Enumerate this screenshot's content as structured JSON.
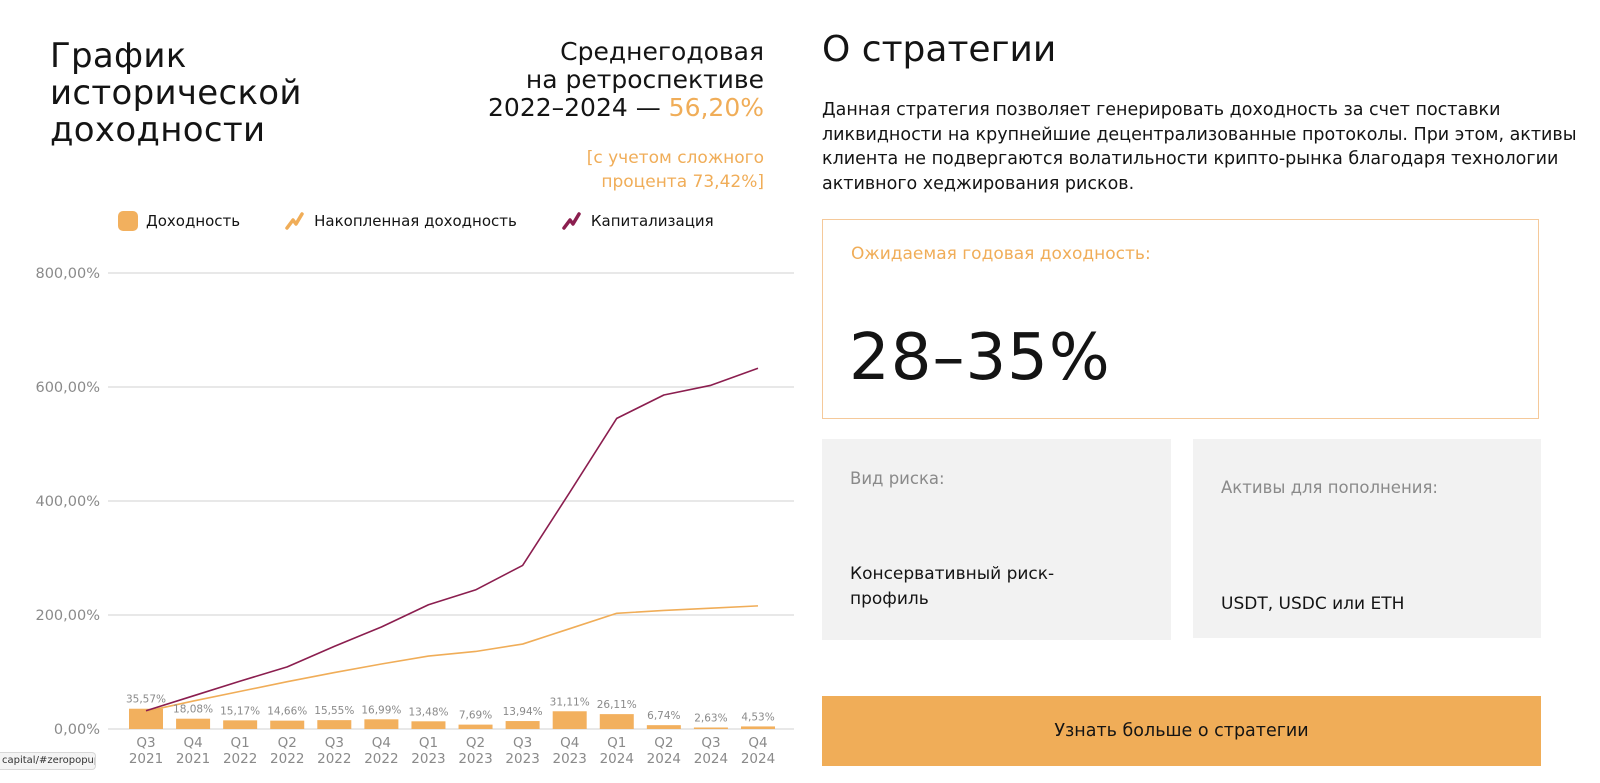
{
  "left_panel": {
    "title": "График исторической доходности",
    "summary": {
      "line1": "Среднегодовая",
      "line2": "на ретроспективе",
      "line3_prefix": "2022–2024 — ",
      "line3_value": "56,20%"
    },
    "compound_line1": "[с учетом сложного",
    "compound_line2": "процента 73,42%]"
  },
  "colors": {
    "accent": "#f0ad58",
    "bars": "#f2b05e",
    "cumulative_line": "#f0ad58",
    "capitalization_line": "#8b1e4f",
    "grid": "#d9d9d9",
    "axis_text": "#8a8a8a"
  },
  "legend": {
    "income": "Доходность",
    "cumulative": "Накопленная доходность",
    "capitalization": "Капитализация"
  },
  "chart_data": {
    "type": "bar",
    "y_tick_labels": [
      "0,00%",
      "200,00%",
      "400,00%",
      "600,00%",
      "800,00%"
    ],
    "y_ticks": [
      0,
      200,
      400,
      600,
      800
    ],
    "ylim": [
      0,
      800
    ],
    "grid": true,
    "legend_position": "top",
    "categories": [
      [
        "Q3",
        "2021"
      ],
      [
        "Q4",
        "2021"
      ],
      [
        "Q1",
        "2022"
      ],
      [
        "Q2",
        "2022"
      ],
      [
        "Q3",
        "2022"
      ],
      [
        "Q4",
        "2022"
      ],
      [
        "Q1",
        "2023"
      ],
      [
        "Q2",
        "2023"
      ],
      [
        "Q3",
        "2023"
      ],
      [
        "Q4",
        "2023"
      ],
      [
        "Q1",
        "2024"
      ],
      [
        "Q2",
        "2024"
      ],
      [
        "Q3",
        "2024"
      ],
      [
        "Q4",
        "2024"
      ]
    ],
    "series": [
      {
        "name": "Доходность",
        "type": "bar",
        "values": [
          35.57,
          18.08,
          15.17,
          14.66,
          15.55,
          16.99,
          13.48,
          7.69,
          13.94,
          31.11,
          26.11,
          6.74,
          2.63,
          4.53
        ],
        "labels": [
          "35,57%",
          "18,08%",
          "15,17%",
          "14,66%",
          "15,55%",
          "16,99%",
          "13,48%",
          "7,69%",
          "13,94%",
          "31,11%",
          "26,11%",
          "6,74%",
          "2,63%",
          "4,53%"
        ]
      },
      {
        "name": "Накопленная доходность",
        "type": "line",
        "values": [
          31,
          49,
          66,
          83,
          99,
          114,
          128,
          136,
          149,
          176,
          203,
          208,
          212,
          216
        ]
      },
      {
        "name": "Капитализация",
        "type": "line",
        "values": [
          32,
          58,
          84,
          109,
          145,
          179,
          218,
          244,
          287,
          415,
          545,
          586,
          603,
          633
        ]
      }
    ]
  },
  "right_panel": {
    "title": "О стратегии",
    "description": "Данная стратегия позволяет генерировать доходность за счет поставки ликвидности на крупнейшие децентрализованные протоколы. При этом, активы клиента не подвергаются волатильности крипто-рынка благодаря технологии активного хеджирования рисков.",
    "expected_label": "Ожидаемая годовая доходность:",
    "expected_value": "28–35%",
    "risk_label": "Вид риска:",
    "risk_value": "Консервативный риск-профиль",
    "assets_label": "Активы для пополнения:",
    "assets_value": "USDT, USDC или ETH",
    "cta_label": "Узнать больше о стратегии"
  },
  "status_url": "capital/#zeropopup"
}
